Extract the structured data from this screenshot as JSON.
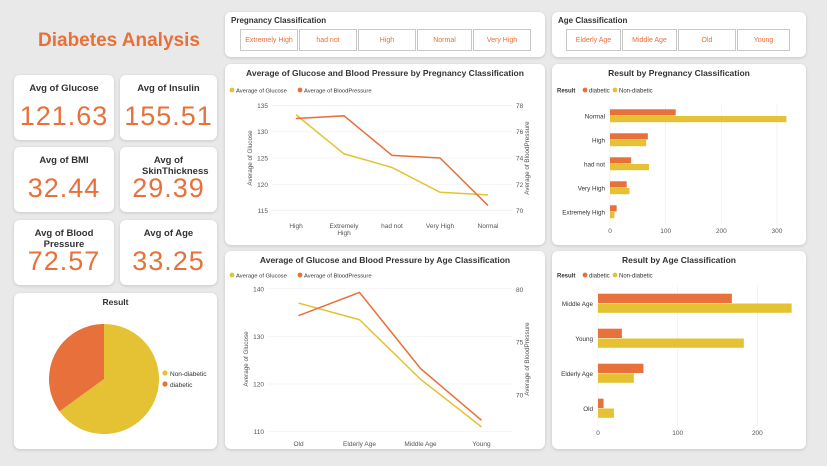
{
  "header": {
    "title": "Diabetes Analysis"
  },
  "colors": {
    "orange": "#e8703a",
    "yellow": "#e4c234"
  },
  "kpis": [
    {
      "label": "Avg of Glucose",
      "value": "121.63"
    },
    {
      "label": "Avg of Insulin",
      "value": "155.51"
    },
    {
      "label": "Avg of BMI",
      "value": "32.44"
    },
    {
      "label": "Avg of SkinThickness",
      "value": "29.39"
    },
    {
      "label": "Avg of Blood Pressure",
      "value": "72.57"
    },
    {
      "label": "Avg of Age",
      "value": "33.25"
    }
  ],
  "slicers": {
    "pregnancy": {
      "title": "Pregnancy Classification",
      "items": [
        "Extremely High",
        "had not",
        "High",
        "Normal",
        "Very High"
      ]
    },
    "age": {
      "title": "Age Classification",
      "items": [
        "Elderly Age",
        "Middle Age",
        "Old",
        "Young"
      ]
    }
  },
  "chart_data": [
    {
      "id": "pie",
      "type": "pie",
      "title": "Result",
      "categories": [
        "Non-diabetic",
        "diabetic"
      ],
      "values": [
        65,
        35
      ],
      "legend": "right"
    },
    {
      "id": "line_preg",
      "type": "line",
      "title": "Average of Glucose and Blood Pressure by Pregnancy Classification",
      "x": [
        "High",
        "Extremely High",
        "had not",
        "Very High",
        "Normal"
      ],
      "series": [
        {
          "name": "Average of Glucose",
          "axis": "left",
          "values": [
            133.2,
            125.8,
            123.2,
            118.5,
            118.0
          ]
        },
        {
          "name": "Average of BloodPressure",
          "axis": "right",
          "values": [
            77.0,
            77.2,
            74.2,
            74.0,
            70.4
          ]
        }
      ],
      "ylabel": "Average of Glucose",
      "y2label": "Average of BloodPressure",
      "ylim": [
        114,
        136
      ],
      "y2lim": [
        69.6,
        78.4
      ],
      "yticks": [
        115,
        120,
        125,
        130,
        135
      ],
      "y2ticks": [
        70,
        72,
        74,
        76,
        78
      ],
      "legend": "top-left"
    },
    {
      "id": "bar_preg",
      "type": "bar",
      "orientation": "horizontal",
      "title": "Result by Pregnancy Classification",
      "legend_title": "Result",
      "categories": [
        "Normal",
        "High",
        "had not",
        "Very High",
        "Extremely High"
      ],
      "series": [
        {
          "name": "diabetic",
          "values": [
            118,
            68,
            38,
            30,
            12
          ]
        },
        {
          "name": "Non-diabetic",
          "values": [
            317,
            65,
            70,
            35,
            8
          ]
        }
      ],
      "xticks": [
        0,
        100,
        200,
        300
      ],
      "xlim": [
        0,
        345
      ],
      "legend": "top-left"
    },
    {
      "id": "line_age",
      "type": "line",
      "title": "Average of Glucose and Blood Pressure by Age Classification",
      "x": [
        "Old",
        "Elderly Age",
        "Middle Age",
        "Young"
      ],
      "series": [
        {
          "name": "Average of Glucose",
          "axis": "left",
          "values": [
            137,
            133.5,
            121,
            111
          ]
        },
        {
          "name": "Average of BloodPressure",
          "axis": "right",
          "values": [
            77.5,
            79.7,
            72.5,
            67.6
          ]
        }
      ],
      "ylabel": "Average of Glucose",
      "y2label": "Average of BloodPressure",
      "ylim": [
        109.5,
        141
      ],
      "y2lim": [
        66.3,
        80.5
      ],
      "yticks": [
        110,
        120,
        130,
        140
      ],
      "y2ticks": [
        70,
        75,
        80
      ],
      "legend": "top-left"
    },
    {
      "id": "bar_age",
      "type": "bar",
      "orientation": "horizontal",
      "title": "Result by Age Classification",
      "legend_title": "Result",
      "categories": [
        "Middle Age",
        "Young",
        "Elderly Age",
        "Old"
      ],
      "series": [
        {
          "name": "diabetic",
          "values": [
            168,
            30,
            57,
            7
          ]
        },
        {
          "name": "Non-diabetic",
          "values": [
            243,
            183,
            45,
            20
          ]
        }
      ],
      "xticks": [
        0,
        100,
        200
      ],
      "xlim": [
        0,
        256
      ],
      "legend": "top-left"
    }
  ]
}
